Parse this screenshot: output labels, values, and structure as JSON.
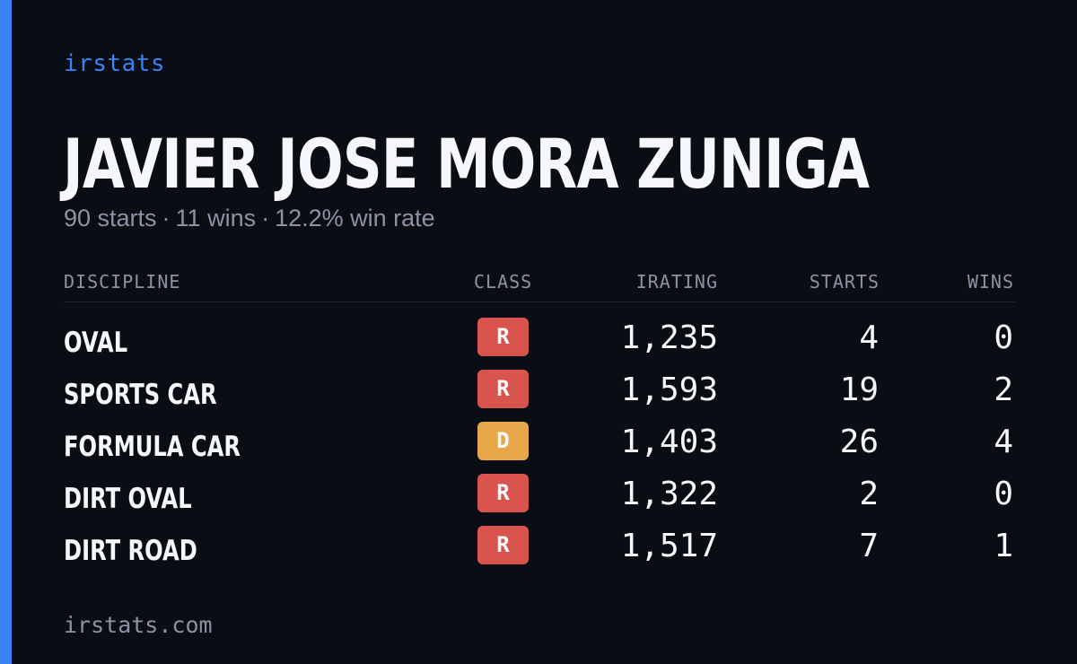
{
  "brand": {
    "name": "irstats"
  },
  "driver": {
    "name": "JAVIER JOSE MORA ZUNIGA",
    "starts_text": "90 starts",
    "wins_text": "11 wins",
    "winrate_text": "12.2% win rate",
    "separator": "·"
  },
  "table": {
    "headers": {
      "discipline": "DISCIPLINE",
      "class": "CLASS",
      "irating": "IRATING",
      "starts": "STARTS",
      "wins": "WINS"
    },
    "rows": [
      {
        "discipline": "OVAL",
        "class": "R",
        "class_color": "#d9534f",
        "irating": "1,235",
        "starts": "4",
        "wins": "0"
      },
      {
        "discipline": "SPORTS CAR",
        "class": "R",
        "class_color": "#d9534f",
        "irating": "1,593",
        "starts": "19",
        "wins": "2"
      },
      {
        "discipline": "FORMULA CAR",
        "class": "D",
        "class_color": "#e8a84a",
        "irating": "1,403",
        "starts": "26",
        "wins": "4"
      },
      {
        "discipline": "DIRT OVAL",
        "class": "R",
        "class_color": "#d9534f",
        "irating": "1,322",
        "starts": "2",
        "wins": "0"
      },
      {
        "discipline": "DIRT ROAD",
        "class": "R",
        "class_color": "#d9534f",
        "irating": "1,517",
        "starts": "7",
        "wins": "1"
      }
    ]
  },
  "footer": {
    "url": "irstats.com"
  },
  "colors": {
    "accent": "#3b82f6",
    "background": "#0a0d14",
    "text": "#f5f7fa",
    "muted": "#8b93a5",
    "class_r": "#d9534f",
    "class_d": "#e8a84a"
  }
}
